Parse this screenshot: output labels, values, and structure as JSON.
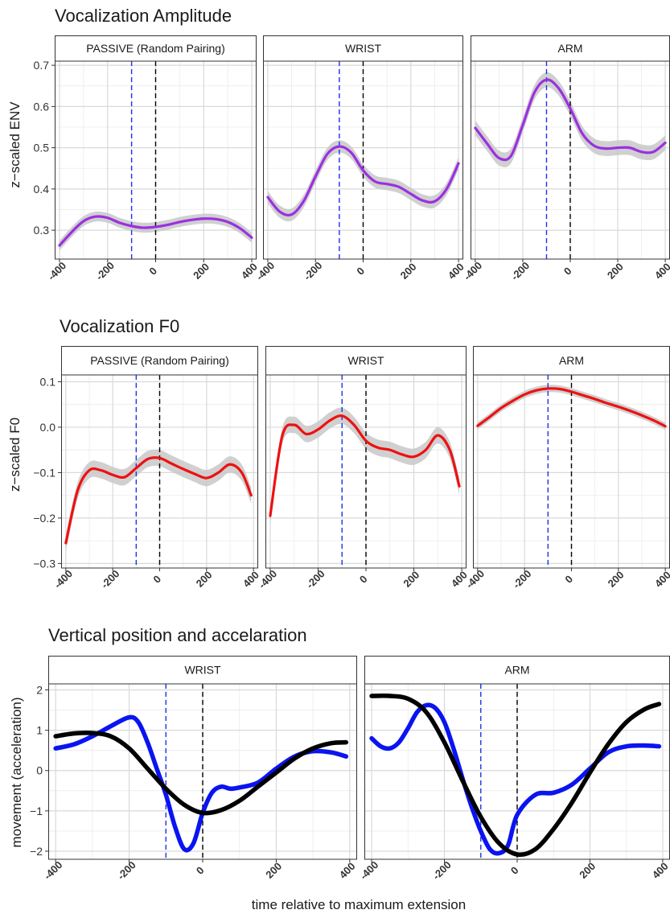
{
  "figure": {
    "xlabel": "time relative to maximum extension"
  },
  "colors": {
    "amplitude": "#9b30e0",
    "f0": "#ee1111",
    "position": "#0a14f0",
    "acceleration": "#000000",
    "marker_blue": "#1a33e6",
    "marker_black": "#000000",
    "ribbon": "#c8c8c8"
  },
  "chart_data": [
    {
      "type": "line",
      "title": "Vocalization Amplitude",
      "ylabel": "z−scaled ENV",
      "xlim": [
        -420,
        420
      ],
      "ylim": [
        0.23,
        0.71
      ],
      "yticks": [
        0.3,
        0.4,
        0.5,
        0.6,
        0.7
      ],
      "yticklabels": [
        "0.3",
        "0.4",
        "0.5",
        "0.6",
        "0.7"
      ],
      "xticks": [
        -400,
        -200,
        0,
        200,
        400
      ],
      "xticklabels": [
        "-400",
        "-200",
        "0",
        "200",
        "400"
      ],
      "vlines": [
        {
          "x": -100,
          "color": "blue"
        },
        {
          "x": 0,
          "color": "black"
        }
      ],
      "panels": [
        {
          "strip": "PASSIVE (Random Pairing)",
          "series": [
            {
              "color": "amplitude",
              "ribbon": 0.012,
              "x": [
                -400,
                -350,
                -300,
                -250,
                -200,
                -150,
                -100,
                -50,
                0,
                50,
                100,
                150,
                200,
                250,
                300,
                350,
                400
              ],
              "y": [
                0.263,
                0.295,
                0.322,
                0.333,
                0.33,
                0.318,
                0.31,
                0.306,
                0.308,
                0.313,
                0.32,
                0.325,
                0.328,
                0.327,
                0.32,
                0.305,
                0.282
              ]
            }
          ]
        },
        {
          "strip": "WRIST",
          "series": [
            {
              "color": "amplitude",
              "ribbon": 0.015,
              "x": [
                -400,
                -350,
                -300,
                -250,
                -200,
                -150,
                -100,
                -50,
                0,
                50,
                100,
                150,
                200,
                250,
                300,
                350,
                400
              ],
              "y": [
                0.38,
                0.345,
                0.338,
                0.37,
                0.43,
                0.485,
                0.503,
                0.488,
                0.445,
                0.418,
                0.412,
                0.405,
                0.388,
                0.372,
                0.37,
                0.4,
                0.462
              ]
            }
          ]
        },
        {
          "strip": "ARM",
          "series": [
            {
              "color": "amplitude",
              "ribbon": 0.018,
              "x": [
                -400,
                -350,
                -300,
                -250,
                -200,
                -150,
                -100,
                -50,
                0,
                50,
                100,
                150,
                200,
                250,
                300,
                350,
                400
              ],
              "y": [
                0.548,
                0.51,
                0.475,
                0.48,
                0.555,
                0.635,
                0.665,
                0.645,
                0.595,
                0.535,
                0.505,
                0.498,
                0.5,
                0.5,
                0.49,
                0.49,
                0.512
              ]
            }
          ]
        }
      ]
    },
    {
      "type": "line",
      "title": "Vocalization F0",
      "ylabel": "z−scaled F0",
      "xlim": [
        -420,
        420
      ],
      "ylim": [
        -0.31,
        0.115
      ],
      "yticks": [
        -0.3,
        -0.2,
        -0.1,
        0.0,
        0.1
      ],
      "yticklabels": [
        "−0.3",
        "−0.2",
        "−0.1",
        "0.0",
        "0.1"
      ],
      "xticks": [
        -400,
        -200,
        0,
        200,
        400
      ],
      "xticklabels": [
        "-400",
        "-200",
        "0",
        "200",
        "400"
      ],
      "vlines": [
        {
          "x": -100,
          "color": "blue"
        },
        {
          "x": 0,
          "color": "black"
        }
      ],
      "panels": [
        {
          "strip": "PASSIVE (Random Pairing)",
          "series": [
            {
              "color": "f0",
              "ribbon": 0.018,
              "x": [
                -400,
                -350,
                -300,
                -250,
                -200,
                -150,
                -100,
                -50,
                0,
                50,
                100,
                150,
                200,
                250,
                300,
                350,
                390
              ],
              "y": [
                -0.255,
                -0.14,
                -0.095,
                -0.095,
                -0.105,
                -0.11,
                -0.09,
                -0.07,
                -0.068,
                -0.08,
                -0.092,
                -0.103,
                -0.112,
                -0.1,
                -0.082,
                -0.1,
                -0.15
              ]
            }
          ]
        },
        {
          "strip": "WRIST",
          "series": [
            {
              "color": "f0",
              "ribbon": 0.018,
              "x": [
                -400,
                -350,
                -300,
                -250,
                -200,
                -150,
                -100,
                -50,
                0,
                50,
                100,
                150,
                200,
                250,
                300,
                350,
                390
              ],
              "y": [
                -0.195,
                -0.02,
                0.005,
                -0.015,
                -0.005,
                0.015,
                0.025,
                0.005,
                -0.03,
                -0.045,
                -0.05,
                -0.06,
                -0.065,
                -0.05,
                -0.018,
                -0.05,
                -0.13
              ]
            }
          ]
        },
        {
          "strip": "ARM",
          "series": [
            {
              "color": "f0",
              "ribbon": 0.008,
              "x": [
                -400,
                -350,
                -300,
                -250,
                -200,
                -150,
                -100,
                -50,
                0,
                50,
                100,
                150,
                200,
                250,
                300,
                350,
                400
              ],
              "y": [
                0.003,
                0.022,
                0.042,
                0.058,
                0.072,
                0.081,
                0.085,
                0.084,
                0.078,
                0.07,
                0.062,
                0.053,
                0.045,
                0.036,
                0.026,
                0.015,
                0.002
              ]
            }
          ]
        }
      ]
    },
    {
      "type": "line",
      "title": "Vertical position and accelaration",
      "ylabel": "movement (acceleration)",
      "xlim": [
        -420,
        420
      ],
      "ylim": [
        -2.2,
        2.15
      ],
      "yticks": [
        -2,
        -1,
        0,
        1,
        2
      ],
      "yticklabels": [
        "−2",
        "−1",
        "0",
        "1",
        "2"
      ],
      "xticks": [
        -400,
        -200,
        0,
        200,
        400
      ],
      "xticklabels": [
        "-400",
        "-200",
        "0",
        "200",
        "400"
      ],
      "vlines": [
        {
          "x": -100,
          "color": "blue"
        },
        {
          "x": 0,
          "color": "black"
        }
      ],
      "panels": [
        {
          "strip": "WRIST",
          "series": [
            {
              "color": "position",
              "ribbon": 0.06,
              "x": [
                -400,
                -350,
                -300,
                -250,
                -200,
                -175,
                -150,
                -125,
                -100,
                -75,
                -50,
                -25,
                0,
                25,
                50,
                75,
                100,
                150,
                200,
                250,
                300,
                350,
                390
              ],
              "y": [
                0.55,
                0.65,
                0.85,
                1.1,
                1.32,
                1.2,
                0.7,
                0.05,
                -0.6,
                -1.4,
                -1.95,
                -1.8,
                -1.05,
                -0.55,
                -0.4,
                -0.45,
                -0.42,
                -0.3,
                0.05,
                0.35,
                0.48,
                0.45,
                0.35
              ]
            },
            {
              "color": "acceleration",
              "ribbon": 0.06,
              "x": [
                -400,
                -350,
                -300,
                -250,
                -200,
                -150,
                -100,
                -50,
                0,
                50,
                100,
                150,
                200,
                250,
                300,
                350,
                390
              ],
              "y": [
                0.85,
                0.92,
                0.93,
                0.85,
                0.55,
                0.05,
                -0.45,
                -0.85,
                -1.05,
                -0.98,
                -0.75,
                -0.4,
                -0.05,
                0.3,
                0.55,
                0.68,
                0.7
              ]
            }
          ]
        },
        {
          "strip": "ARM",
          "series": [
            {
              "color": "position",
              "ribbon": 0.06,
              "x": [
                -400,
                -375,
                -350,
                -325,
                -300,
                -275,
                -250,
                -225,
                -200,
                -175,
                -150,
                -125,
                -100,
                -75,
                -50,
                -25,
                0,
                50,
                100,
                150,
                200,
                250,
                300,
                350,
                390
              ],
              "y": [
                0.8,
                0.6,
                0.55,
                0.7,
                1.05,
                1.45,
                1.62,
                1.55,
                1.2,
                0.55,
                -0.2,
                -0.9,
                -1.5,
                -1.95,
                -2.05,
                -1.85,
                -1.1,
                -0.6,
                -0.55,
                -0.35,
                0.05,
                0.45,
                0.6,
                0.62,
                0.6
              ]
            },
            {
              "color": "acceleration",
              "ribbon": 0.06,
              "x": [
                -400,
                -350,
                -300,
                -250,
                -200,
                -150,
                -100,
                -50,
                0,
                50,
                100,
                150,
                200,
                250,
                300,
                350,
                390
              ],
              "y": [
                1.85,
                1.85,
                1.78,
                1.45,
                0.7,
                -0.25,
                -1.15,
                -1.8,
                -2.08,
                -1.95,
                -1.45,
                -0.8,
                -0.05,
                0.65,
                1.2,
                1.52,
                1.65
              ]
            }
          ]
        }
      ]
    }
  ]
}
